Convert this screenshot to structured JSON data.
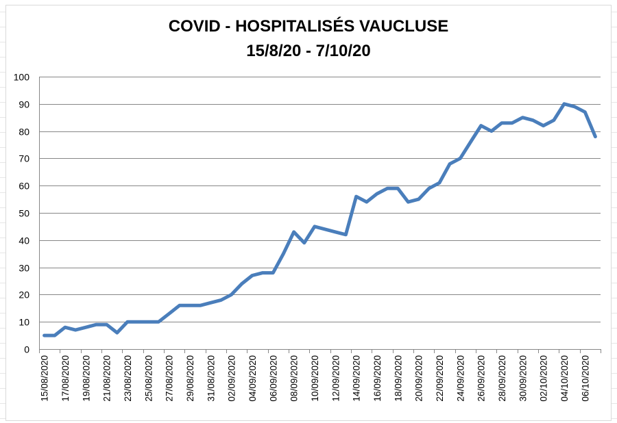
{
  "chart_data": {
    "type": "line",
    "title": "COVID - HOSPITALISÉS VAUCLUSE",
    "subtitle": "15/8/20 - 7/10/20",
    "xlabel": "",
    "ylabel": "",
    "ylim": [
      0,
      100
    ],
    "yticks": [
      0,
      10,
      20,
      30,
      40,
      50,
      60,
      70,
      80,
      90,
      100
    ],
    "grid": true,
    "legend": "none",
    "series_color": "#4a7ebb",
    "x": [
      "15/08/2020",
      "16/08/2020",
      "17/08/2020",
      "18/08/2020",
      "19/08/2020",
      "20/08/2020",
      "21/08/2020",
      "22/08/2020",
      "23/08/2020",
      "24/08/2020",
      "25/08/2020",
      "26/08/2020",
      "27/08/2020",
      "28/08/2020",
      "29/08/2020",
      "30/08/2020",
      "31/08/2020",
      "01/09/2020",
      "02/09/2020",
      "03/09/2020",
      "04/09/2020",
      "05/09/2020",
      "06/09/2020",
      "07/09/2020",
      "08/09/2020",
      "09/09/2020",
      "10/09/2020",
      "11/09/2020",
      "12/09/2020",
      "13/09/2020",
      "14/09/2020",
      "15/09/2020",
      "16/09/2020",
      "17/09/2020",
      "18/09/2020",
      "19/09/2020",
      "20/09/2020",
      "21/09/2020",
      "22/09/2020",
      "23/09/2020",
      "24/09/2020",
      "25/09/2020",
      "26/09/2020",
      "27/09/2020",
      "28/09/2020",
      "29/09/2020",
      "30/09/2020",
      "01/10/2020",
      "02/10/2020",
      "03/10/2020",
      "04/10/2020",
      "05/10/2020",
      "06/10/2020",
      "07/10/2020"
    ],
    "xtick_labels": [
      "15/08/2020",
      "17/08/2020",
      "19/08/2020",
      "21/08/2020",
      "23/08/2020",
      "25/08/2020",
      "27/08/2020",
      "29/08/2020",
      "31/08/2020",
      "02/09/2020",
      "04/09/2020",
      "06/09/2020",
      "08/09/2020",
      "10/09/2020",
      "12/09/2020",
      "14/09/2020",
      "16/09/2020",
      "18/09/2020",
      "20/09/2020",
      "22/09/2020",
      "24/09/2020",
      "26/09/2020",
      "28/09/2020",
      "30/09/2020",
      "02/10/2020",
      "04/10/2020",
      "06/10/2020"
    ],
    "series": [
      {
        "values": [
          5,
          5,
          8,
          7,
          8,
          9,
          9,
          6,
          10,
          10,
          10,
          10,
          13,
          16,
          16,
          16,
          17,
          18,
          20,
          24,
          27,
          28,
          28,
          35,
          43,
          39,
          45,
          44,
          43,
          42,
          56,
          54,
          57,
          59,
          59,
          54,
          55,
          59,
          61,
          68,
          70,
          76,
          82,
          80,
          83,
          83,
          85,
          84,
          82,
          84,
          90,
          89,
          87,
          78
        ]
      }
    ]
  }
}
